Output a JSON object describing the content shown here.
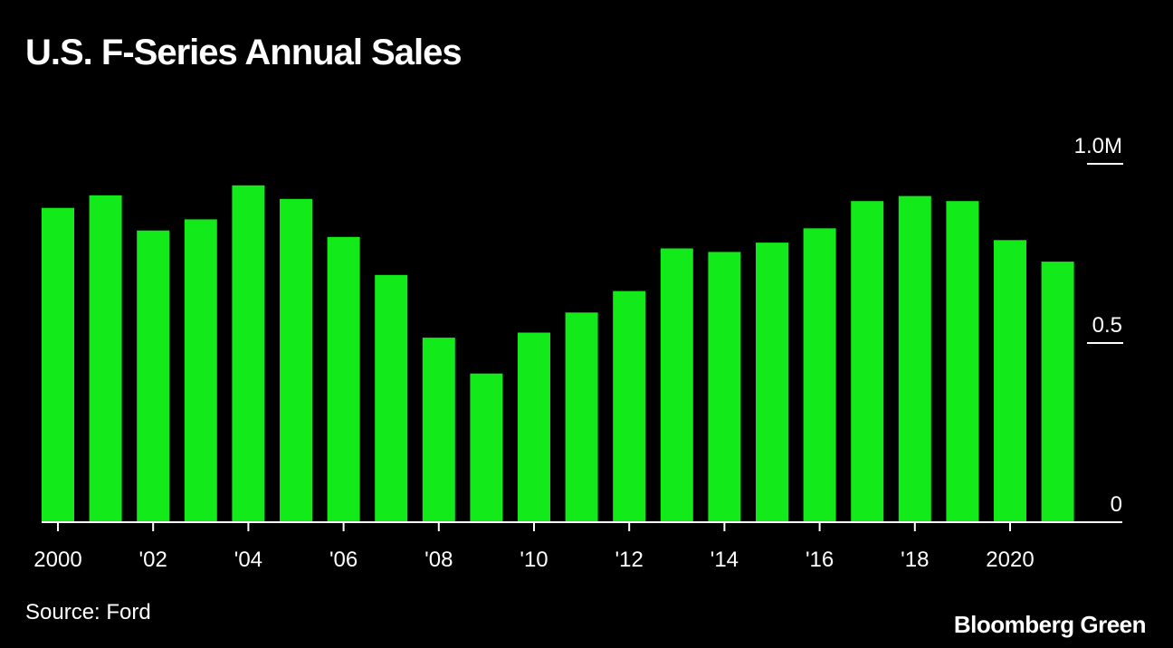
{
  "chart_data": {
    "type": "bar",
    "title": "U.S. F-Series Annual Sales",
    "categories": [
      "2000",
      "2001",
      "2002",
      "2003",
      "2004",
      "2005",
      "2006",
      "2007",
      "2008",
      "2009",
      "2010",
      "2011",
      "2012",
      "2013",
      "2014",
      "2015",
      "2016",
      "2017",
      "2018",
      "2019",
      "2020",
      "2021"
    ],
    "values": [
      0.877,
      0.912,
      0.814,
      0.845,
      0.94,
      0.902,
      0.796,
      0.69,
      0.515,
      0.415,
      0.529,
      0.585,
      0.645,
      0.764,
      0.754,
      0.78,
      0.82,
      0.896,
      0.91,
      0.896,
      0.787,
      0.727
    ],
    "x_tick_labels": [
      "2000",
      "",
      "'02",
      "",
      "'04",
      "",
      "'06",
      "",
      "'08",
      "",
      "'10",
      "",
      "'12",
      "",
      "'14",
      "",
      "'16",
      "",
      "'18",
      "",
      "2020",
      ""
    ],
    "y_ticks": [
      {
        "value": 0,
        "label": "0"
      },
      {
        "value": 0.5,
        "label": "0.5"
      },
      {
        "value": 1.0,
        "label": "1.0M"
      }
    ],
    "ylim": [
      0,
      1.0
    ],
    "xlabel": "",
    "ylabel": "",
    "grid": false,
    "bar_color": "#12ea1a",
    "axis_color": "#ffffff",
    "background": "#000000"
  },
  "source": "Source: Ford",
  "brand": "Bloomberg Green"
}
